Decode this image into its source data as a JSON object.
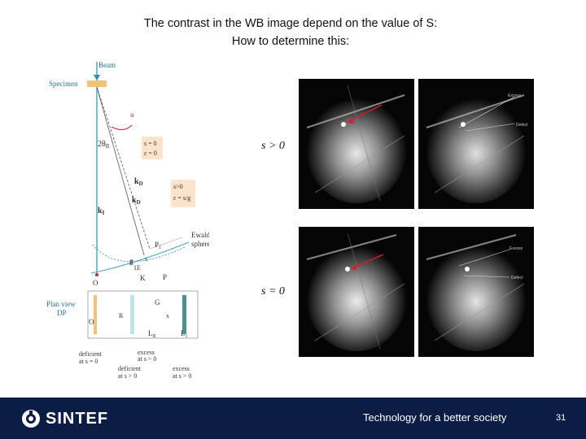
{
  "title": {
    "line1": "The contrast in the WB image depend on the value of  S:",
    "line2": "How to determine this:"
  },
  "diagram": {
    "beam": "Beam",
    "specimen": "Specimen",
    "u": "u",
    "two_theta": "2θ",
    "theta_sub": "B",
    "s_eq_0_a": "s = 0",
    "eps_eq_0": "ε = 0",
    "kd": "k",
    "kd_sub": "D",
    "ki": "k",
    "ki_sub": "I",
    "s_gt_0": "s>0",
    "eps_eq": "ε = s/g",
    "ewald": "Ewald",
    "sphere": "sphere",
    "p1": "P",
    "p1_sub": "1",
    "g": "g",
    "s_small": "s",
    "one_e": "1E",
    "k_cap": "K",
    "p_cap": "P",
    "o_cap": "O",
    "plan": "Plan view",
    "dp": "DP",
    "o_small": "O",
    "r_small": "R",
    "g_cap": "G",
    "x_small": "x",
    "l_b": "L",
    "l_b_sub": "B",
    "l_1": "L",
    "l_1_sub": "1",
    "def1a": "deficient",
    "def1b": "at s",
    "def1c": "= 0",
    "exc1a": "excess",
    "exc1b": "at s",
    "exc1c": "> 0",
    "def2a": "deficient",
    "def2b": "at s > 0",
    "exc2a": "excess",
    "exc2b": "at s > 0"
  },
  "labels": {
    "s_gt_0": "s > 0",
    "s_eq_0": "s = 0"
  },
  "images": {
    "excess": "Excess",
    "defect": "Defect"
  },
  "footer": {
    "brand": "SINTEF",
    "tagline": "Technology for a better society",
    "page": "31"
  },
  "colors": {
    "footer_bg": "#0b1d44",
    "beam_line": "#2a8fb0",
    "specimen": "#f2c27a",
    "arrow_red": "#d2202f"
  }
}
